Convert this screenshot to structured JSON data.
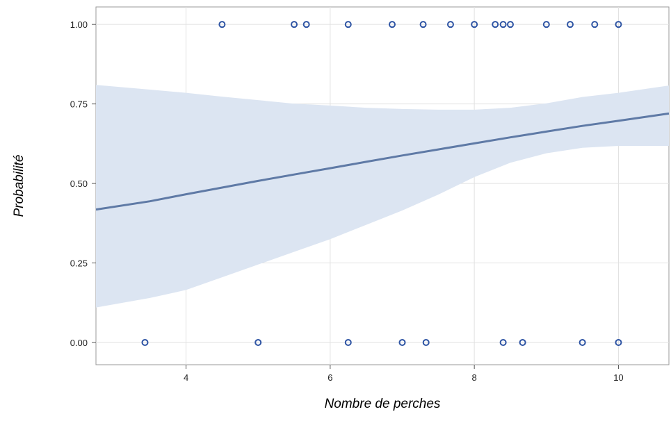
{
  "chart_data": {
    "type": "scatter",
    "title": "",
    "xlabel": "Nombre de perches",
    "ylabel": "Probabilité",
    "xlim": [
      2.75,
      10.7
    ],
    "ylim": [
      -0.07,
      1.055
    ],
    "grid": true,
    "legend": "none",
    "x_ticks": [
      4,
      6,
      8,
      10
    ],
    "x_tick_labels": [
      "4",
      "6",
      "8",
      "10"
    ],
    "y_ticks": [
      0,
      0.25,
      0.5,
      0.75,
      1
    ],
    "y_tick_labels": [
      "0.00",
      "0.25",
      "0.50",
      "0.75",
      "1.00"
    ],
    "colors": {
      "points": "#2f55a4",
      "fit_line": "#5f7aa6",
      "band": "#dce5f2",
      "grid": "#e1e1e1",
      "frame": "#9a9a9a"
    },
    "series": [
      {
        "type": "scatter",
        "points": [
          {
            "x": 4.5,
            "y": 1
          },
          {
            "x": 5.5,
            "y": 1
          },
          {
            "x": 5.67,
            "y": 1
          },
          {
            "x": 6.25,
            "y": 1
          },
          {
            "x": 6.86,
            "y": 1
          },
          {
            "x": 7.29,
            "y": 1
          },
          {
            "x": 7.67,
            "y": 1
          },
          {
            "x": 8.0,
            "y": 1
          },
          {
            "x": 8.29,
            "y": 1
          },
          {
            "x": 8.4,
            "y": 1
          },
          {
            "x": 8.5,
            "y": 1
          },
          {
            "x": 9.0,
            "y": 1
          },
          {
            "x": 9.33,
            "y": 1
          },
          {
            "x": 9.67,
            "y": 1
          },
          {
            "x": 10.0,
            "y": 1
          },
          {
            "x": 3.43,
            "y": 0
          },
          {
            "x": 5.0,
            "y": 0
          },
          {
            "x": 6.25,
            "y": 0
          },
          {
            "x": 7.0,
            "y": 0
          },
          {
            "x": 7.33,
            "y": 0
          },
          {
            "x": 8.4,
            "y": 0
          },
          {
            "x": 8.67,
            "y": 0
          },
          {
            "x": 9.5,
            "y": 0
          },
          {
            "x": 10.0,
            "y": 0
          }
        ]
      },
      {
        "type": "line",
        "x": [
          2.75,
          3.5,
          4.0,
          4.5,
          5.0,
          5.5,
          6.0,
          6.5,
          7.0,
          7.5,
          8.0,
          8.5,
          9.0,
          9.5,
          10.0,
          10.7
        ],
        "y": [
          0.418,
          0.444,
          0.466,
          0.487,
          0.508,
          0.528,
          0.548,
          0.568,
          0.588,
          0.607,
          0.626,
          0.645,
          0.663,
          0.681,
          0.697,
          0.72
        ]
      },
      {
        "type": "band",
        "x": [
          2.75,
          3.5,
          4.0,
          4.5,
          5.0,
          5.5,
          6.0,
          6.5,
          7.0,
          7.5,
          8.0,
          8.5,
          9.0,
          9.5,
          10.0,
          10.7
        ],
        "lower": [
          0.11,
          0.14,
          0.165,
          0.205,
          0.245,
          0.285,
          0.325,
          0.37,
          0.415,
          0.465,
          0.52,
          0.565,
          0.595,
          0.612,
          0.618,
          0.618
        ],
        "upper": [
          0.81,
          0.795,
          0.785,
          0.773,
          0.762,
          0.751,
          0.745,
          0.738,
          0.734,
          0.732,
          0.732,
          0.738,
          0.752,
          0.772,
          0.785,
          0.808
        ]
      }
    ]
  }
}
